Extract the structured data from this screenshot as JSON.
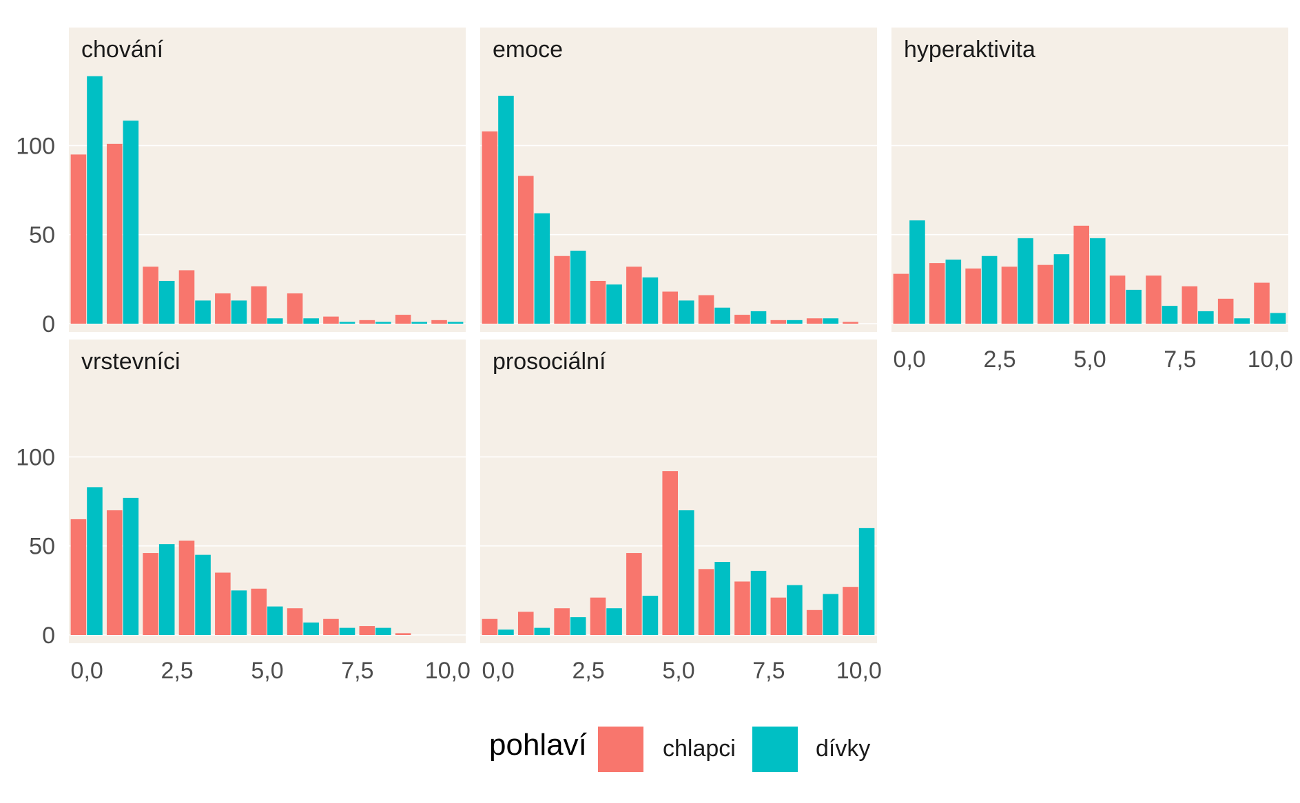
{
  "chart_data": {
    "type": "bar",
    "layout": "faceted",
    "legend_placement": "bottom",
    "grid": true,
    "xlim": [
      -0.5,
      10.5
    ],
    "ylim": [
      0,
      140
    ],
    "x_ticks": [
      0,
      2.5,
      5,
      7.5,
      10
    ],
    "x_tick_labels": [
      "0,0",
      "2,5",
      "5,0",
      "7,5",
      "10,0"
    ],
    "y_ticks": [
      0,
      50,
      100
    ],
    "y_tick_labels": [
      "0",
      "50",
      "100"
    ],
    "x": [
      0,
      1,
      2,
      3,
      4,
      5,
      6,
      7,
      8,
      9,
      10
    ],
    "legend": {
      "title": "pohlaví",
      "entries": [
        {
          "name": "chlapci",
          "color": "#F8766D"
        },
        {
          "name": "dívky",
          "color": "#00BFC4"
        }
      ]
    },
    "panels": [
      {
        "title": "chování",
        "series": [
          {
            "name": "chlapci",
            "values": [
              95,
              101,
              32,
              30,
              17,
              21,
              17,
              4,
              2,
              5,
              2
            ]
          },
          {
            "name": "dívky",
            "values": [
              139,
              114,
              24,
              13,
              13,
              3,
              3,
              1,
              1,
              1,
              1
            ]
          }
        ]
      },
      {
        "title": "emoce",
        "series": [
          {
            "name": "chlapci",
            "values": [
              108,
              83,
              38,
              24,
              32,
              18,
              16,
              5,
              2,
              3,
              1
            ]
          },
          {
            "name": "dívky",
            "values": [
              128,
              62,
              41,
              22,
              26,
              13,
              9,
              7,
              2,
              3,
              0
            ]
          }
        ]
      },
      {
        "title": "hyperaktivita",
        "series": [
          {
            "name": "chlapci",
            "values": [
              28,
              34,
              31,
              32,
              33,
              55,
              27,
              27,
              21,
              14,
              23
            ]
          },
          {
            "name": "dívky",
            "values": [
              58,
              36,
              38,
              48,
              39,
              48,
              19,
              10,
              7,
              3,
              6
            ]
          }
        ]
      },
      {
        "title": "vrstevníci",
        "series": [
          {
            "name": "chlapci",
            "values": [
              65,
              70,
              46,
              53,
              35,
              26,
              15,
              9,
              5,
              1,
              0
            ]
          },
          {
            "name": "dívky",
            "values": [
              83,
              77,
              51,
              45,
              25,
              16,
              7,
              4,
              4,
              0,
              0
            ]
          }
        ]
      },
      {
        "title": "prosociální",
        "series": [
          {
            "name": "chlapci",
            "values": [
              9,
              13,
              15,
              21,
              46,
              92,
              37,
              30,
              21,
              14,
              27
            ]
          },
          {
            "name": "dívky",
            "values": [
              3,
              4,
              10,
              15,
              22,
              70,
              41,
              36,
              28,
              23,
              60
            ]
          }
        ]
      }
    ]
  }
}
